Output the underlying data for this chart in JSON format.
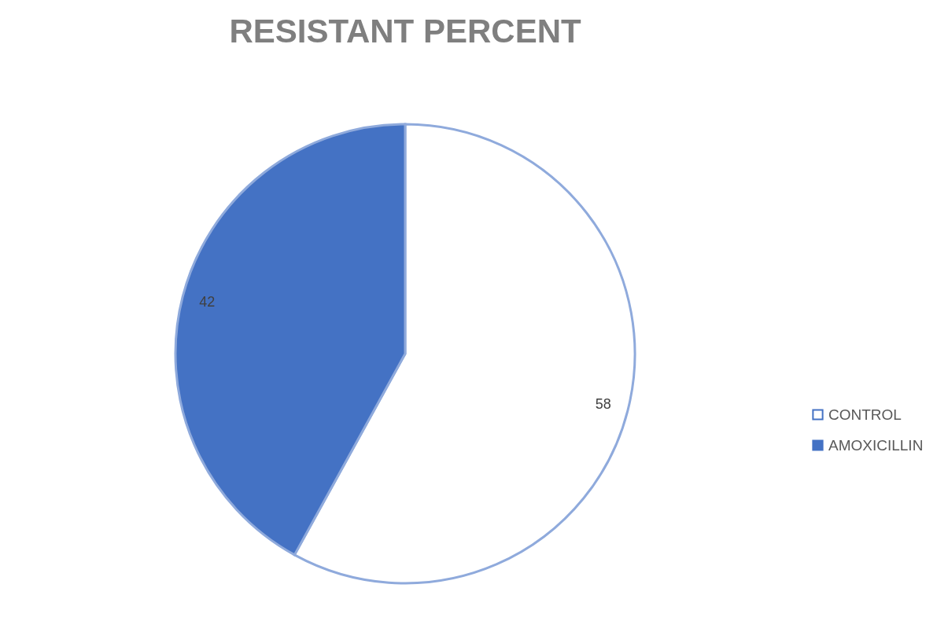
{
  "chart_data": {
    "type": "pie",
    "title": "RESISTANT PERCENT",
    "categories": [
      "CONTROL",
      "AMOXICILLIN"
    ],
    "values": [
      58,
      42
    ],
    "colors": [
      "#ffffff",
      "#4472c4"
    ],
    "data_labels": true,
    "legend": "right"
  }
}
